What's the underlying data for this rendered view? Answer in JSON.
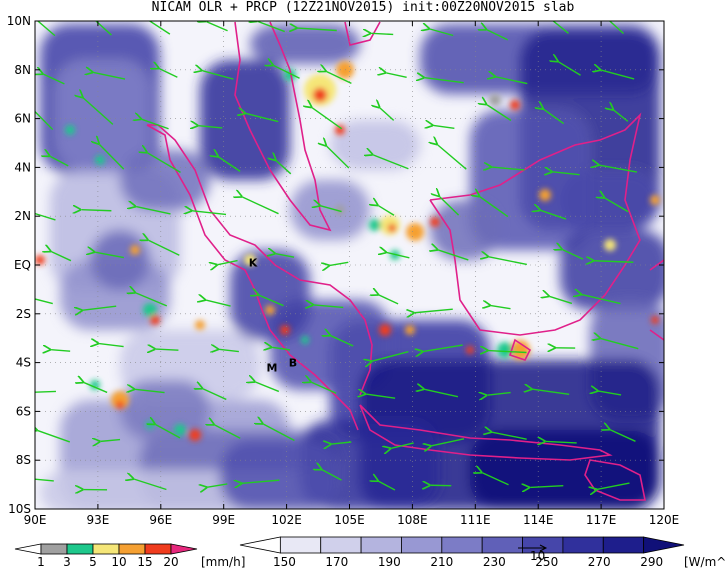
{
  "title": "NICAM OLR + PRCP (12Z21NOV2015) init:00Z20NOV2015 slab",
  "axes": {
    "lat_labels": [
      "10N",
      "8N",
      "6N",
      "4N",
      "2N",
      "EQ",
      "2S",
      "4S",
      "6S",
      "8S",
      "10S"
    ],
    "lon_labels": [
      "90E",
      "93E",
      "96E",
      "99E",
      "102E",
      "105E",
      "108E",
      "111E",
      "114E",
      "117E",
      "120E"
    ]
  },
  "map": {
    "lat_range": [
      -10,
      10
    ],
    "lon_range": [
      90,
      120
    ],
    "markers": [
      {
        "label": "K",
        "lat": 0.1,
        "lon": 100.4
      },
      {
        "label": "M",
        "lat": -4.2,
        "lon": 101.3
      },
      {
        "label": "B",
        "lat": -4.0,
        "lon": 102.3
      }
    ]
  },
  "prcp_colorbar": {
    "ticks": [
      "1",
      "3",
      "5",
      "10",
      "15",
      "20"
    ],
    "unit": "[mm/h]",
    "colors": [
      "#ffffff",
      "#a0a0a0",
      "#1ec88c",
      "#f5e678",
      "#f5a032",
      "#f03c1e",
      "#e6287d"
    ]
  },
  "olr_colorbar": {
    "ticks": [
      "150",
      "170",
      "190",
      "210",
      "230",
      "250",
      "270",
      "290"
    ],
    "unit": "[W/m^2]",
    "colors": [
      "#ffffff",
      "#e8e8f5",
      "#d0d0eb",
      "#b4b4df",
      "#9898d3",
      "#7c7cc6",
      "#6060b8",
      "#4646aa",
      "#30309c",
      "#1e1e8c",
      "#101078"
    ]
  },
  "vector_ref": {
    "label": "10"
  }
}
